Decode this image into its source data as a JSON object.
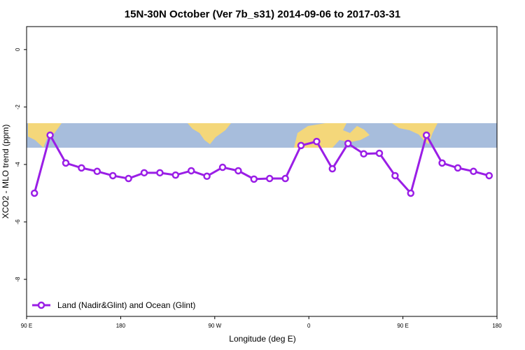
{
  "chart_data": {
    "type": "line",
    "title": "15N-30N October (Ver 7b_s31)   2014-09-06 to 2017-03-31",
    "x_label": "Longitude (deg E)",
    "y_label": "XCO2 - MLO trend (ppm)",
    "x": [
      97.5,
      112.5,
      127.5,
      142.5,
      157.5,
      172.5,
      187.5,
      202.5,
      217.5,
      232.5,
      247.5,
      262.5,
      277.5,
      292.5,
      307.5,
      322.5,
      337.5,
      352.5,
      367.5,
      382.5,
      397.5,
      412.5,
      427.5,
      442.5,
      457.5,
      472.5,
      487.5,
      502.5,
      517.5,
      532.5
    ],
    "series": [
      {
        "name": "Land (Nadir&Glint) and Ocean (Glint)",
        "color": "#9a1ee6",
        "values": [
          -5.0,
          -2.98,
          -3.95,
          -4.12,
          -4.24,
          -4.39,
          -4.49,
          -4.29,
          -4.29,
          -4.37,
          -4.22,
          -4.41,
          -4.1,
          -4.22,
          -4.51,
          -4.49,
          -4.49,
          -3.34,
          -3.2,
          -4.15,
          -3.27,
          -3.63,
          -3.61,
          -4.39,
          -5.0,
          -2.98,
          -3.95,
          -4.12,
          -4.24,
          -4.39
        ]
      }
    ],
    "xlim": [
      90,
      540
    ],
    "xticks": [
      {
        "value": 90,
        "label": "90 E"
      },
      180,
      {
        "value": 270,
        "label": "90 W"
      },
      {
        "value": 360,
        "label": "0"
      },
      {
        "value": 450,
        "label": "90 E"
      },
      {
        "value": 540,
        "label": "180"
      }
    ],
    "ylim": [
      -9.29,
      0.8
    ],
    "yticks": [
      0,
      -2,
      -4,
      -6,
      -8
    ],
    "legend": "bottomleft"
  }
}
